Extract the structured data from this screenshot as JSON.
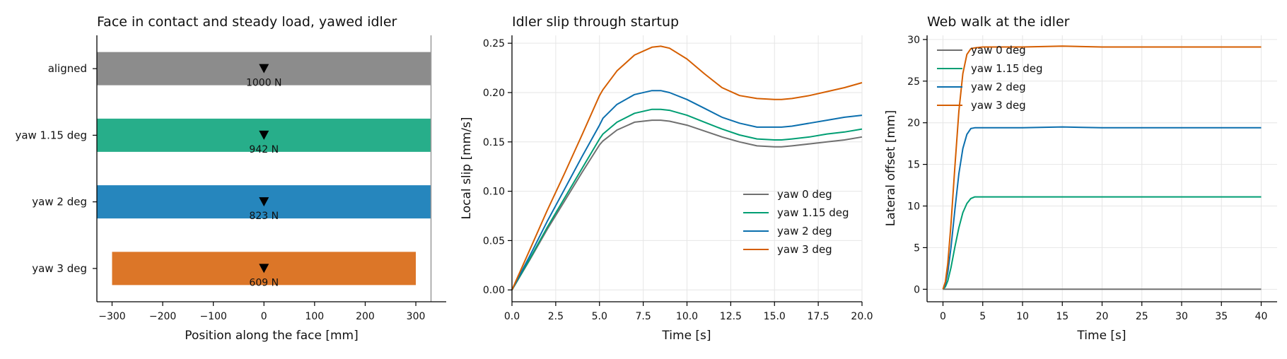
{
  "chart_data": [
    {
      "type": "bar",
      "orientation": "horizontal",
      "title": "Face in contact and steady load, yawed idler",
      "xlabel": "Position along the face [mm]",
      "ylabel": "",
      "xlim": [
        -330,
        360
      ],
      "xticks": [
        -300,
        -200,
        -100,
        0,
        100,
        200,
        300
      ],
      "xtick_labels": [
        "−300",
        "−200",
        "−100",
        "0",
        "100",
        "200",
        "300"
      ],
      "face_edge": 330,
      "categories": [
        "aligned",
        "yaw 1.15 deg",
        "yaw 2 deg",
        "yaw 3 deg"
      ],
      "bars": [
        {
          "label": "aligned",
          "start": -330,
          "end": 330,
          "color": "#8c8c8c",
          "load_label": "1000 N",
          "marker": 0
        },
        {
          "label": "yaw 1.15 deg",
          "start": -330,
          "end": 330,
          "color": "#27ae8a",
          "load_label": "942 N",
          "marker": 0
        },
        {
          "label": "yaw 2 deg",
          "start": -330,
          "end": 330,
          "color": "#2686bd",
          "load_label": "823 N",
          "marker": 0
        },
        {
          "label": "yaw 3 deg",
          "start": -300,
          "end": 300,
          "color": "#dc7628",
          "load_label": "609 N",
          "marker": 0
        }
      ]
    },
    {
      "type": "line",
      "title": "Idler slip through startup",
      "xlabel": "Time [s]",
      "ylabel": "Local slip [mm/s]",
      "xlim": [
        0,
        20
      ],
      "ylim": [
        -0.012,
        0.258
      ],
      "xticks": [
        0,
        2.5,
        5,
        7.5,
        10,
        12.5,
        15,
        17.5,
        20
      ],
      "xtick_labels": [
        "0.0",
        "2.5",
        "5.0",
        "7.5",
        "10.0",
        "12.5",
        "15.0",
        "17.5",
        "20.0"
      ],
      "yticks": [
        0,
        0.05,
        0.1,
        0.15,
        0.2,
        0.25
      ],
      "ytick_labels": [
        "0.00",
        "0.05",
        "0.10",
        "0.15",
        "0.20",
        "0.25"
      ],
      "grid": true,
      "legend": "bottom-right",
      "series": [
        {
          "name": "yaw 0 deg",
          "color": "#707070",
          "x": [
            0,
            1,
            2,
            3,
            4,
            5,
            5.2,
            6,
            7,
            8,
            8.5,
            9,
            10,
            11,
            12,
            13,
            14,
            15,
            15.4,
            16,
            17,
            18,
            19,
            20
          ],
          "y": [
            0,
            0.03,
            0.061,
            0.09,
            0.119,
            0.147,
            0.151,
            0.162,
            0.17,
            0.172,
            0.172,
            0.171,
            0.167,
            0.161,
            0.155,
            0.15,
            0.146,
            0.145,
            0.145,
            0.146,
            0.148,
            0.15,
            0.152,
            0.155
          ]
        },
        {
          "name": "yaw 1.15 deg",
          "color": "#009e73",
          "x": [
            0,
            1,
            2,
            3,
            4,
            5,
            5.2,
            6,
            7,
            8,
            8.5,
            9,
            10,
            11,
            12,
            13,
            14,
            15,
            15.4,
            16,
            17,
            18,
            19,
            20
          ],
          "y": [
            0,
            0.031,
            0.063,
            0.093,
            0.123,
            0.153,
            0.158,
            0.17,
            0.179,
            0.183,
            0.183,
            0.182,
            0.177,
            0.17,
            0.163,
            0.157,
            0.153,
            0.152,
            0.152,
            0.153,
            0.155,
            0.158,
            0.16,
            0.163
          ]
        },
        {
          "name": "yaw 2 deg",
          "color": "#0b6fae",
          "x": [
            0,
            1,
            2,
            3,
            4,
            5,
            5.2,
            6,
            7,
            8,
            8.5,
            9,
            10,
            11,
            12,
            13,
            14,
            15,
            15.4,
            16,
            17,
            18,
            19,
            20
          ],
          "y": [
            0,
            0.034,
            0.069,
            0.102,
            0.135,
            0.167,
            0.174,
            0.188,
            0.198,
            0.202,
            0.202,
            0.2,
            0.193,
            0.184,
            0.175,
            0.169,
            0.165,
            0.165,
            0.165,
            0.166,
            0.169,
            0.172,
            0.175,
            0.177
          ]
        },
        {
          "name": "yaw 3 deg",
          "color": "#d55e00",
          "x": [
            0,
            1,
            2,
            3,
            4,
            5,
            5.2,
            6,
            7,
            8,
            8.5,
            9,
            10,
            11,
            12,
            13,
            14,
            15,
            15.4,
            16,
            17,
            18,
            19,
            20
          ],
          "y": [
            0,
            0.04,
            0.08,
            0.118,
            0.157,
            0.197,
            0.203,
            0.222,
            0.238,
            0.246,
            0.247,
            0.245,
            0.234,
            0.219,
            0.205,
            0.197,
            0.194,
            0.193,
            0.193,
            0.194,
            0.197,
            0.201,
            0.205,
            0.21
          ]
        }
      ]
    },
    {
      "type": "line",
      "title": "Web walk at the idler",
      "xlabel": "Time [s]",
      "ylabel": "Lateral offset [mm]",
      "xlim": [
        -2,
        42
      ],
      "ylim": [
        -1.5,
        30.5
      ],
      "xticks": [
        0,
        5,
        10,
        15,
        20,
        25,
        30,
        35,
        40
      ],
      "xtick_labels": [
        "0",
        "5",
        "10",
        "15",
        "20",
        "25",
        "30",
        "35",
        "40"
      ],
      "yticks": [
        0,
        5,
        10,
        15,
        20,
        25,
        30
      ],
      "ytick_labels": [
        "0",
        "5",
        "10",
        "15",
        "20",
        "25",
        "30"
      ],
      "grid": true,
      "legend": "top-left",
      "series": [
        {
          "name": "yaw 0 deg",
          "color": "#707070",
          "x": [
            0,
            5,
            10,
            20,
            30,
            40
          ],
          "y": [
            0,
            0,
            0,
            0,
            0,
            0
          ]
        },
        {
          "name": "yaw 1.15 deg",
          "color": "#009e73",
          "x": [
            0,
            0.3,
            0.6,
            1,
            1.5,
            2,
            2.5,
            3,
            3.5,
            4,
            5,
            7,
            10,
            15,
            20,
            25,
            30,
            35,
            40
          ],
          "y": [
            0,
            0.3,
            1.0,
            2.6,
            5.1,
            7.4,
            9.2,
            10.3,
            10.9,
            11.1,
            11.1,
            11.1,
            11.1,
            11.1,
            11.1,
            11.1,
            11.1,
            11.1,
            11.1
          ]
        },
        {
          "name": "yaw 2 deg",
          "color": "#0b6fae",
          "x": [
            0,
            0.3,
            0.6,
            1,
            1.5,
            2,
            2.5,
            3,
            3.5,
            4,
            5,
            7,
            10,
            15,
            20,
            25,
            30,
            35,
            40
          ],
          "y": [
            0,
            0.6,
            2.0,
            5.0,
            9.6,
            13.9,
            16.9,
            18.6,
            19.3,
            19.4,
            19.4,
            19.4,
            19.4,
            19.5,
            19.4,
            19.4,
            19.4,
            19.4,
            19.4
          ]
        },
        {
          "name": "yaw 3 deg",
          "color": "#d55e00",
          "x": [
            0,
            0.3,
            0.6,
            1,
            1.5,
            2,
            2.5,
            3,
            3.5,
            4,
            5,
            7,
            10,
            15,
            20,
            25,
            30,
            35,
            40
          ],
          "y": [
            0,
            0.9,
            3.1,
            7.8,
            14.8,
            21.4,
            25.9,
            28.2,
            28.9,
            29.0,
            29.1,
            29.1,
            29.1,
            29.2,
            29.1,
            29.1,
            29.1,
            29.1,
            29.1
          ]
        }
      ]
    }
  ]
}
